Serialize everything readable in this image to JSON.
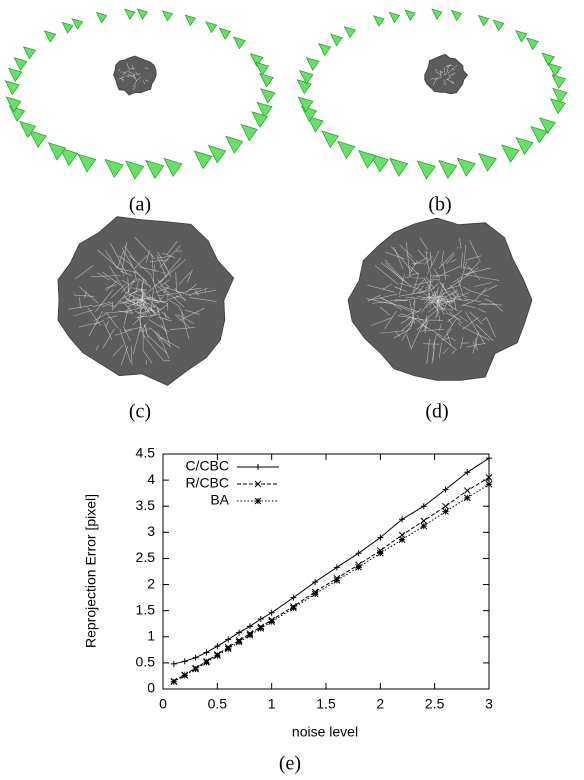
{
  "panel_labels": [
    "(a)",
    "(b)",
    "(c)",
    "(d)",
    "(e)"
  ],
  "chart_data": {
    "type": "line",
    "x_label": "noise level",
    "y_label": "Reprojection Error [pixel]",
    "x": [
      0.1,
      0.2,
      0.3,
      0.4,
      0.5,
      0.6,
      0.7,
      0.8,
      0.9,
      1.0,
      1.2,
      1.4,
      1.6,
      1.8,
      2.0,
      2.2,
      2.4,
      2.6,
      2.8,
      3.0
    ],
    "series": [
      {
        "name": "C/CBC",
        "color": "#000000",
        "dash": "none",
        "marker": "plus",
        "values": [
          0.48,
          0.53,
          0.6,
          0.7,
          0.82,
          0.95,
          1.08,
          1.2,
          1.34,
          1.46,
          1.75,
          2.05,
          2.33,
          2.6,
          2.9,
          3.25,
          3.5,
          3.82,
          4.15,
          4.42
        ]
      },
      {
        "name": "R/CBC",
        "color": "#000000",
        "dash": "4 2",
        "marker": "cross",
        "values": [
          0.15,
          0.27,
          0.4,
          0.53,
          0.66,
          0.8,
          0.93,
          1.06,
          1.19,
          1.32,
          1.58,
          1.86,
          2.12,
          2.38,
          2.65,
          2.95,
          3.22,
          3.5,
          3.8,
          4.05
        ]
      },
      {
        "name": "BA",
        "color": "#000000",
        "dash": "1.5 2",
        "marker": "star",
        "values": [
          0.14,
          0.26,
          0.38,
          0.51,
          0.64,
          0.77,
          0.9,
          1.03,
          1.16,
          1.29,
          1.55,
          1.82,
          2.08,
          2.33,
          2.6,
          2.86,
          3.12,
          3.4,
          3.66,
          3.92
        ]
      }
    ],
    "xlim": [
      0,
      3
    ],
    "ylim": [
      0,
      4.5
    ],
    "xticks": [
      0,
      0.5,
      1,
      1.5,
      2,
      2.5,
      3
    ],
    "yticks": [
      0,
      0.5,
      1,
      1.5,
      2,
      2.5,
      3,
      3.5,
      4,
      4.5
    ],
    "legend": "top-left"
  }
}
